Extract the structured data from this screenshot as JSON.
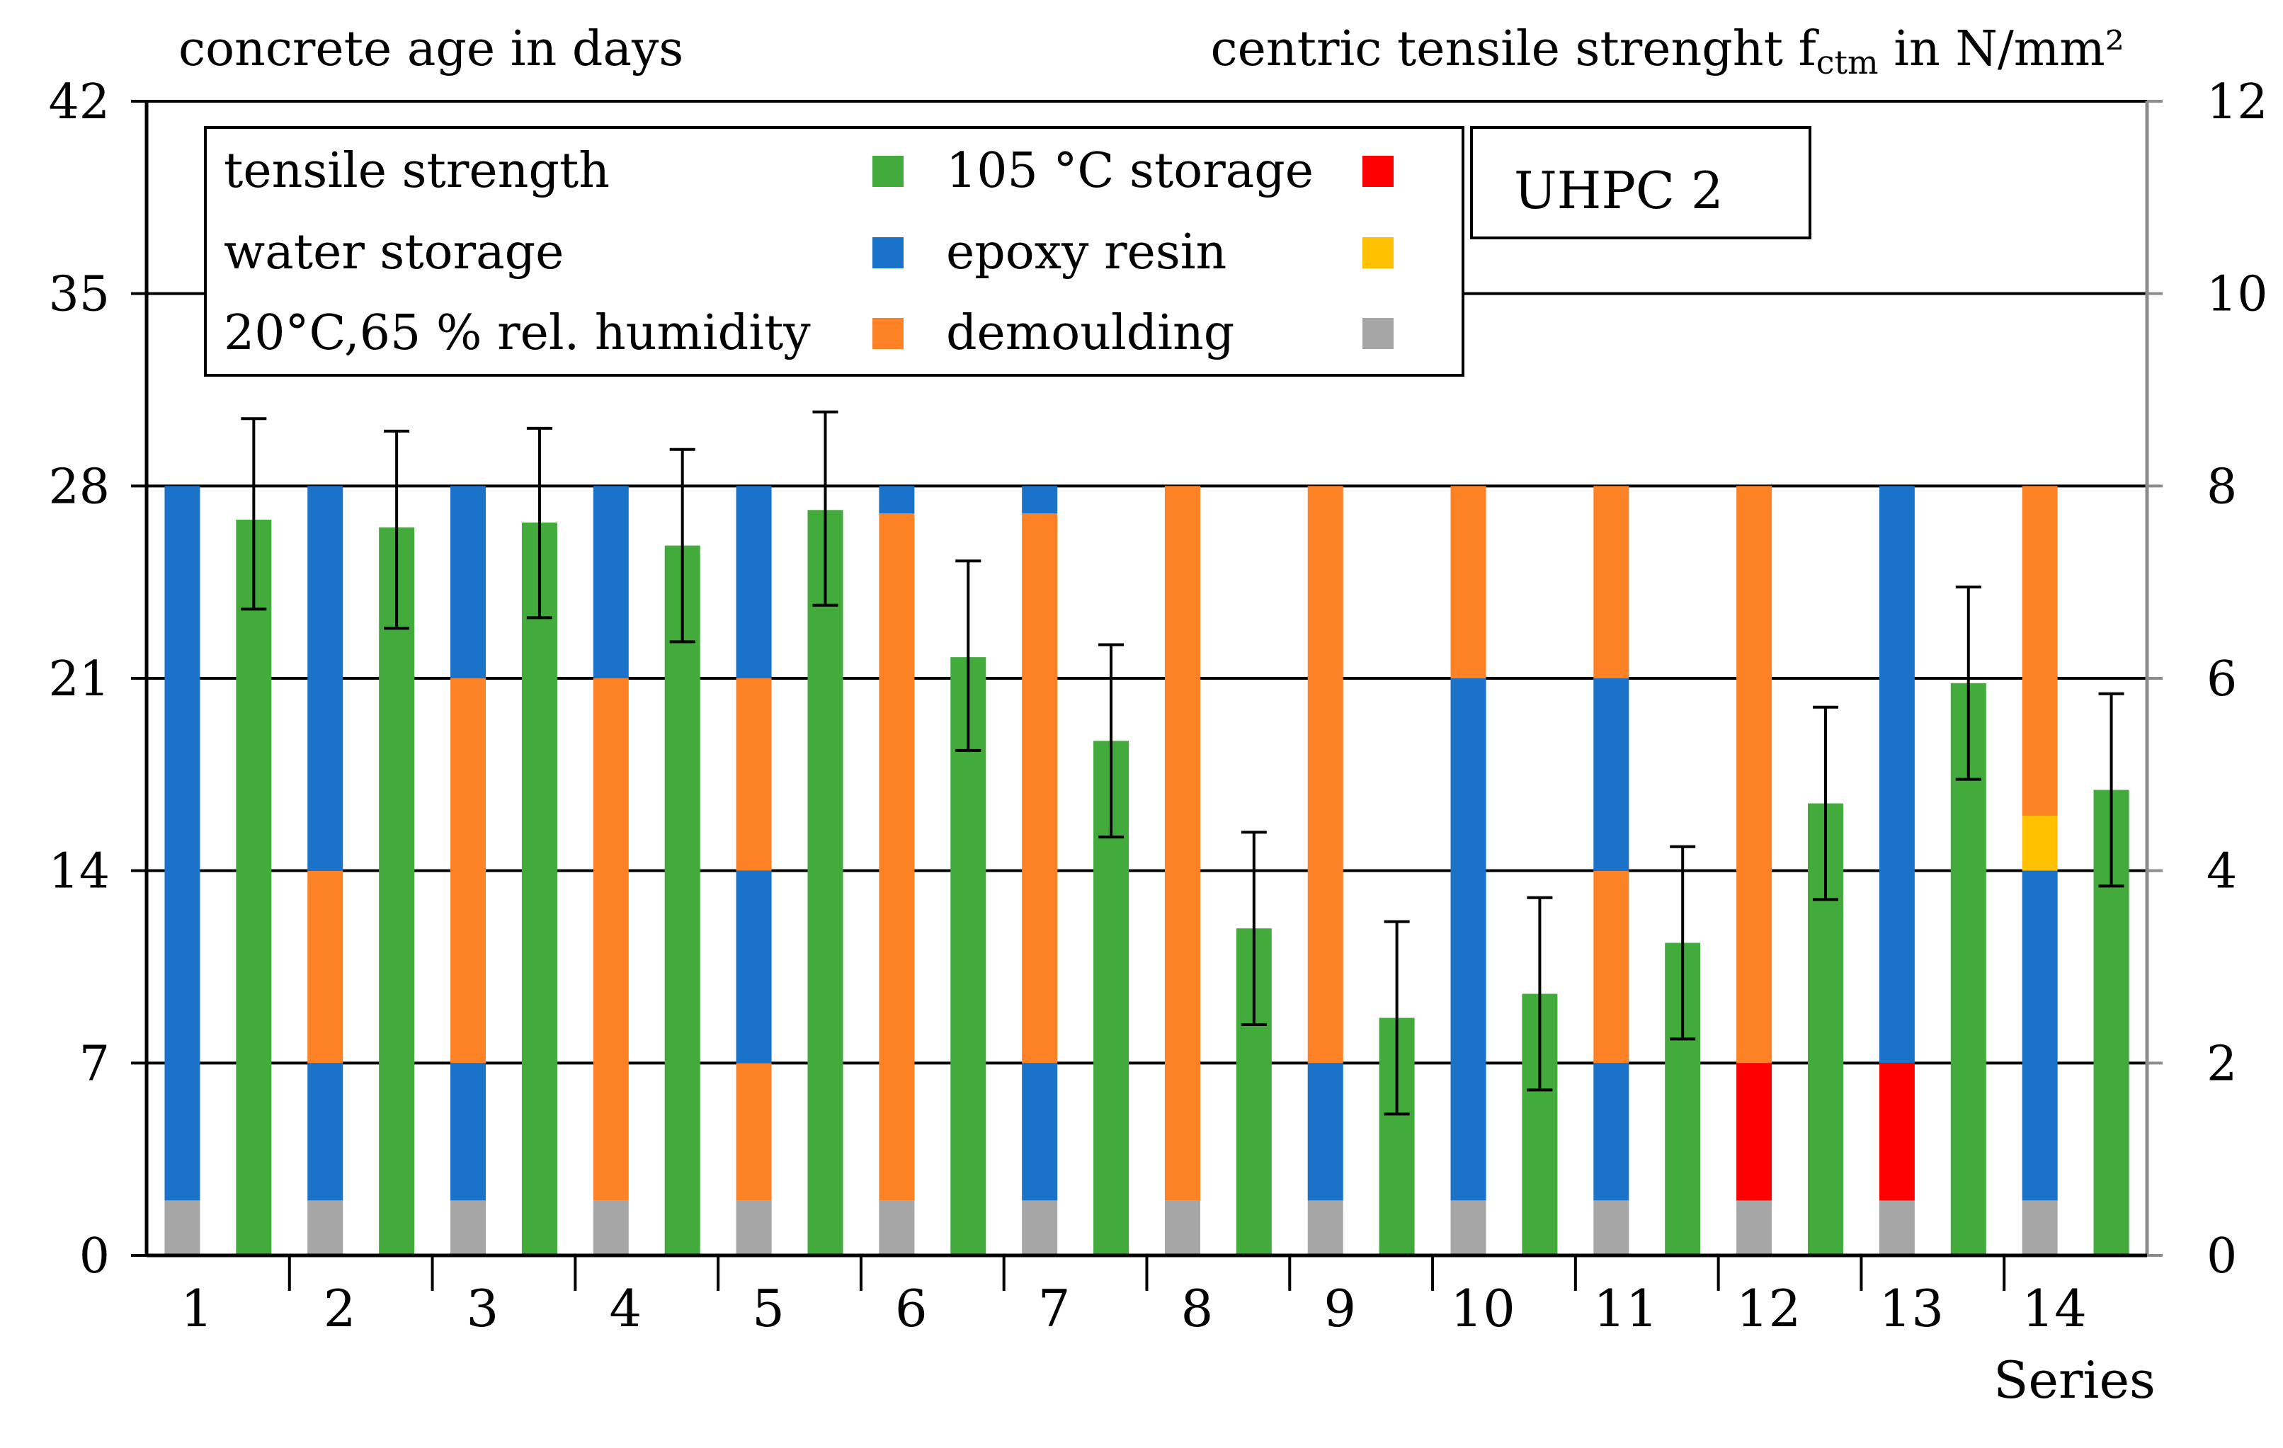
{
  "chart_data": {
    "type": "bar",
    "variant": "stacked storage history (left axis) + tensile strength with error bars (right axis)",
    "title": "",
    "badge": "UHPC 2",
    "left_axis": {
      "label": "concrete age in days",
      "ylim": [
        0,
        42
      ],
      "ticks": [
        0,
        7,
        14,
        21,
        28,
        35,
        42
      ]
    },
    "right_axis": {
      "label_text": "centric tensile strenght f",
      "label_subscript": "ctm",
      "label_unit": " in N/mm²",
      "ylim": [
        0,
        12
      ],
      "ticks": [
        0,
        2,
        4,
        6,
        8,
        10,
        12
      ]
    },
    "xlabel": "Series",
    "categories": [
      "1",
      "2",
      "3",
      "4",
      "5",
      "6",
      "7",
      "8",
      "9",
      "10",
      "11",
      "12",
      "13",
      "14"
    ],
    "legend": {
      "position": "top-left",
      "rows": [
        {
          "left": "tensile strength",
          "left_key": "tensile",
          "right": "105 °C storage",
          "right_key": "storage105"
        },
        {
          "left": "water storage",
          "left_key": "water",
          "right": "epoxy resin",
          "right_key": "epoxy"
        },
        {
          "left": "20°C,65 % rel. humidity",
          "left_key": "climate",
          "right": "demoulding",
          "right_key": "demoulding"
        }
      ]
    },
    "colors": {
      "tensile": "#43ab3c",
      "water": "#1a72c9",
      "climate": "#fd8125",
      "storage105": "#ff0000",
      "epoxy": "#ffc000",
      "demoulding": "#a6a6a6"
    },
    "storage_series": [
      {
        "category": "1",
        "segments": [
          [
            "demoulding",
            0,
            2
          ],
          [
            "water",
            2,
            28
          ]
        ]
      },
      {
        "category": "2",
        "segments": [
          [
            "demoulding",
            0,
            2
          ],
          [
            "water",
            2,
            7
          ],
          [
            "climate",
            7,
            14
          ],
          [
            "water",
            14,
            28
          ]
        ]
      },
      {
        "category": "3",
        "segments": [
          [
            "demoulding",
            0,
            2
          ],
          [
            "water",
            2,
            7
          ],
          [
            "climate",
            7,
            21
          ],
          [
            "water",
            21,
            28
          ]
        ]
      },
      {
        "category": "4",
        "segments": [
          [
            "demoulding",
            0,
            2
          ],
          [
            "climate",
            2,
            21
          ],
          [
            "water",
            21,
            28
          ]
        ]
      },
      {
        "category": "5",
        "segments": [
          [
            "demoulding",
            0,
            2
          ],
          [
            "climate",
            2,
            7
          ],
          [
            "water",
            7,
            14
          ],
          [
            "climate",
            14,
            21
          ],
          [
            "water",
            21,
            28
          ]
        ]
      },
      {
        "category": "6",
        "segments": [
          [
            "demoulding",
            0,
            2
          ],
          [
            "climate",
            2,
            27
          ],
          [
            "water",
            27,
            28
          ]
        ]
      },
      {
        "category": "7",
        "segments": [
          [
            "demoulding",
            0,
            2
          ],
          [
            "water",
            2,
            7
          ],
          [
            "climate",
            7,
            27
          ],
          [
            "water",
            27,
            28
          ]
        ]
      },
      {
        "category": "8",
        "segments": [
          [
            "demoulding",
            0,
            2
          ],
          [
            "climate",
            2,
            28
          ]
        ]
      },
      {
        "category": "9",
        "segments": [
          [
            "demoulding",
            0,
            2
          ],
          [
            "water",
            2,
            7
          ],
          [
            "climate",
            7,
            28
          ]
        ]
      },
      {
        "category": "10",
        "segments": [
          [
            "demoulding",
            0,
            2
          ],
          [
            "water",
            2,
            21
          ],
          [
            "climate",
            21,
            28
          ]
        ]
      },
      {
        "category": "11",
        "segments": [
          [
            "demoulding",
            0,
            2
          ],
          [
            "water",
            2,
            7
          ],
          [
            "climate",
            7,
            14
          ],
          [
            "water",
            14,
            21
          ],
          [
            "climate",
            21,
            28
          ]
        ]
      },
      {
        "category": "12",
        "segments": [
          [
            "demoulding",
            0,
            2
          ],
          [
            "storage105",
            2,
            7
          ],
          [
            "climate",
            7,
            28
          ]
        ]
      },
      {
        "category": "13",
        "segments": [
          [
            "demoulding",
            0,
            2
          ],
          [
            "storage105",
            2,
            7
          ],
          [
            "water",
            7,
            28
          ]
        ]
      },
      {
        "category": "14",
        "segments": [
          [
            "demoulding",
            0,
            2
          ],
          [
            "water",
            2,
            14
          ],
          [
            "epoxy",
            14,
            16
          ],
          [
            "climate",
            16,
            28
          ]
        ]
      }
    ],
    "tensile_strength": {
      "name": "tensile strength",
      "unit": "N/mm²",
      "values": [
        7.65,
        7.57,
        7.62,
        7.38,
        7.75,
        6.22,
        5.35,
        3.4,
        2.47,
        2.72,
        3.25,
        4.7,
        5.95,
        4.84
      ],
      "err_low": [
        6.72,
        6.52,
        6.63,
        6.38,
        6.76,
        5.25,
        4.35,
        2.4,
        1.47,
        1.72,
        2.25,
        3.7,
        4.95,
        3.84
      ],
      "err_high": [
        8.7,
        8.57,
        8.6,
        8.38,
        8.77,
        7.22,
        6.35,
        4.4,
        3.47,
        3.72,
        4.25,
        5.7,
        6.95,
        5.84
      ]
    }
  }
}
